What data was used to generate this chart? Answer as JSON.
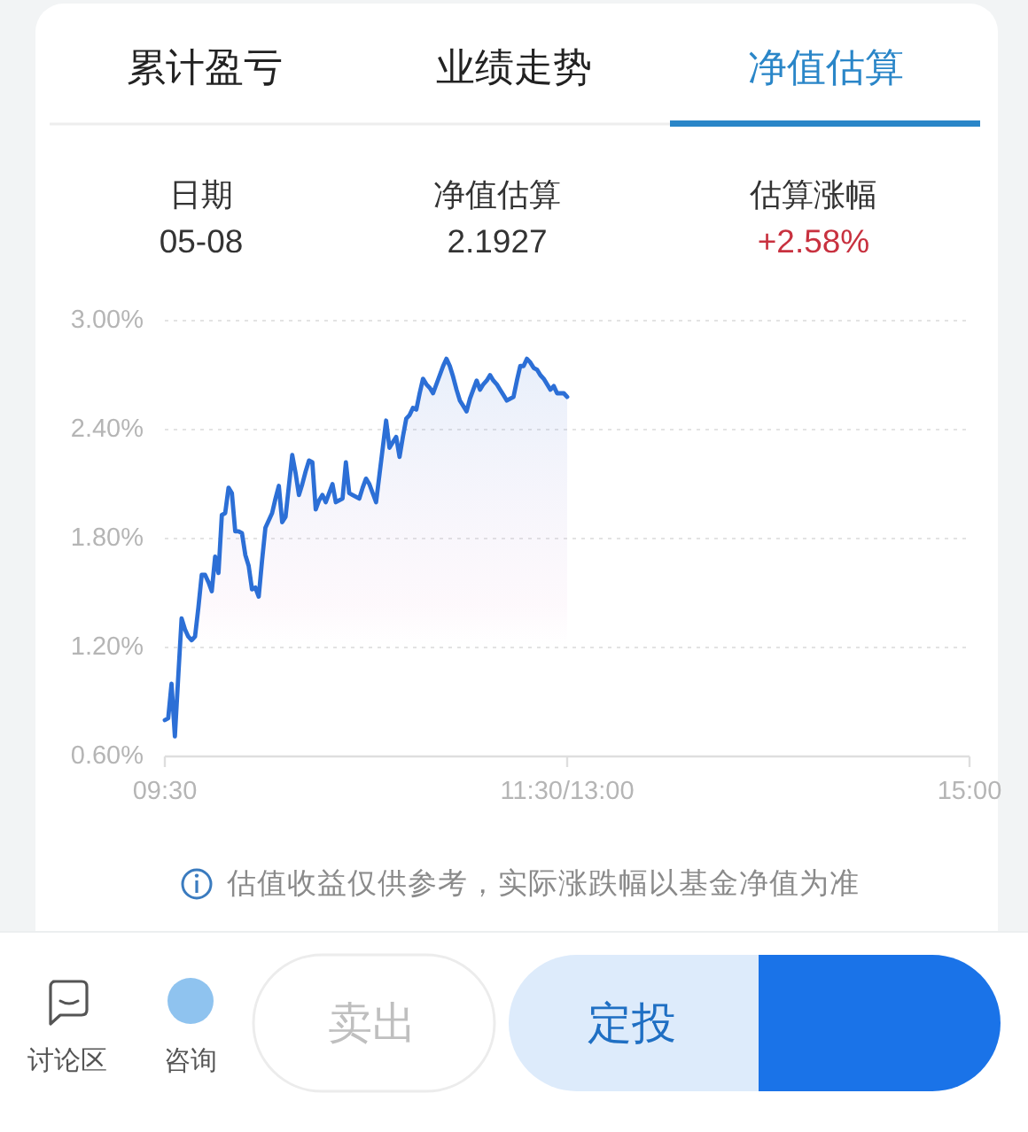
{
  "chart_data": {
    "type": "area",
    "annotations": [
      "累计盈亏",
      "业绩走势",
      "净值估算",
      "日期",
      "05-08",
      "净值估算",
      "2.1927",
      "估算涨幅",
      "+2.58%",
      "估值收益仅供参考，实际涨跌幅以基金净值为准",
      "讨论区",
      "咨询",
      "卖出",
      "定投"
    ],
    "categories": [
      "09:30",
      null,
      null,
      null,
      null,
      null,
      null,
      null,
      null,
      null,
      null,
      null,
      null,
      null,
      null,
      null,
      null,
      null,
      null,
      null,
      null,
      null,
      null,
      null,
      null,
      null,
      null,
      null,
      null,
      null,
      null,
      null,
      null,
      null,
      null,
      null,
      null,
      null,
      null,
      null,
      null,
      null,
      null,
      null,
      null,
      null,
      null,
      null,
      null,
      null,
      null,
      null,
      null,
      null,
      null,
      null,
      null,
      null,
      null,
      null,
      null,
      null,
      null,
      null,
      null,
      null,
      null,
      null,
      null,
      null,
      null,
      null,
      null,
      null,
      null,
      null,
      null,
      null,
      null,
      null,
      null,
      null,
      null,
      null,
      null,
      null,
      null,
      null,
      null,
      null,
      null,
      null,
      null,
      null,
      null,
      null,
      null,
      null,
      null,
      null,
      null,
      null,
      null,
      null,
      null,
      null,
      null,
      null,
      null,
      null,
      null,
      null,
      null,
      null,
      null,
      null,
      null,
      null,
      null,
      null,
      "11:30/13:00",
      null,
      null,
      null,
      null,
      null,
      null,
      null,
      null,
      null,
      null,
      null,
      null,
      null,
      null,
      null,
      null,
      null,
      null,
      null,
      null,
      null,
      null,
      null,
      null,
      null,
      null,
      null,
      null,
      null,
      null,
      null,
      null,
      null,
      null,
      null,
      null,
      null,
      null,
      null,
      null,
      null,
      null,
      null,
      null,
      null,
      null,
      null,
      null,
      null,
      null,
      null,
      null,
      null,
      null,
      null,
      null,
      null,
      null,
      null,
      null,
      null,
      null,
      null,
      null,
      null,
      null,
      null,
      null,
      null,
      null,
      null,
      null,
      null,
      null,
      null,
      null,
      null,
      null,
      null,
      null,
      null,
      null,
      null,
      null,
      null,
      null,
      null,
      null,
      null,
      null,
      null,
      null,
      null,
      null,
      null,
      null,
      null,
      null,
      null,
      null,
      null,
      null,
      null,
      null,
      null,
      null,
      null,
      null,
      null,
      null,
      null,
      null,
      null,
      null,
      null,
      null,
      null,
      null,
      null,
      "15:00"
    ],
    "series": [
      {
        "color": "#2c6fd6",
        "values": [
          0.8,
          0.81,
          1.0,
          0.71,
          1.04,
          1.36,
          1.3,
          1.26,
          1.24,
          1.26,
          1.42,
          1.6,
          1.6,
          1.56,
          1.51,
          1.7,
          1.61,
          1.93,
          1.94,
          2.08,
          2.05,
          1.84,
          1.84,
          1.83,
          1.71,
          1.65,
          1.52,
          1.53,
          1.48,
          1.68,
          1.86,
          1.9,
          1.94,
          2.02,
          2.09,
          1.89,
          1.92,
          2.09,
          2.26,
          2.16,
          2.04,
          2.1,
          2.17,
          2.23,
          2.22,
          1.96,
          2.01,
          2.04,
          2.0,
          2.05,
          2.1,
          2.0,
          2.01,
          2.02,
          2.22,
          2.05,
          2.04,
          2.03,
          2.02,
          2.08,
          2.13,
          2.1,
          2.05,
          2.0,
          2.15,
          2.3,
          2.45,
          2.3,
          2.33,
          2.36,
          2.25,
          2.36,
          2.46,
          2.48,
          2.52,
          2.51,
          2.6,
          2.68,
          2.65,
          2.63,
          2.6,
          2.65,
          2.7,
          2.75,
          2.79,
          2.75,
          2.69,
          2.62,
          2.56,
          2.53,
          2.5,
          2.57,
          2.62,
          2.67,
          2.62,
          2.65,
          2.67,
          2.7,
          2.67,
          2.65,
          2.62,
          2.59,
          2.56,
          2.57,
          2.58,
          2.67,
          2.75,
          2.75,
          2.79,
          2.77,
          2.74,
          2.73,
          2.7,
          2.68,
          2.65,
          2.62,
          2.64,
          2.6,
          2.6,
          2.6,
          2.58,
          null,
          null,
          null,
          null,
          null,
          null,
          null,
          null,
          null,
          null,
          null,
          null,
          null,
          null,
          null,
          null,
          null,
          null,
          null,
          null,
          null,
          null,
          null,
          null,
          null,
          null,
          null,
          null,
          null,
          null,
          null,
          null,
          null,
          null,
          null,
          null,
          null,
          null,
          null,
          null,
          null,
          null,
          null,
          null,
          null,
          null,
          null,
          null,
          null,
          null,
          null,
          null,
          null,
          null,
          null,
          null,
          null,
          null,
          null,
          null,
          null,
          null,
          null,
          null,
          null,
          null,
          null,
          null,
          null,
          null,
          null,
          null,
          null,
          null,
          null,
          null,
          null,
          null,
          null,
          null,
          null,
          null,
          null,
          null,
          null,
          null,
          null,
          null,
          null,
          null,
          null,
          null,
          null,
          null,
          null,
          null,
          null,
          null,
          null,
          null,
          null,
          null,
          null,
          null,
          null,
          null,
          null,
          null,
          null,
          null,
          null,
          null,
          null,
          null,
          null,
          null,
          null,
          null,
          null,
          null
        ]
      }
    ],
    "ylim": [
      0.6,
      3.0
    ],
    "yticks": [
      {
        "value": 0.6,
        "label": "0.60%"
      },
      {
        "value": 1.2,
        "label": "1.20%"
      },
      {
        "value": 1.8,
        "label": "1.80%"
      },
      {
        "value": 2.4,
        "label": "2.40%"
      },
      {
        "value": 3.0,
        "label": "3.00%"
      }
    ],
    "grid": "y",
    "line_style": "solid"
  }
}
